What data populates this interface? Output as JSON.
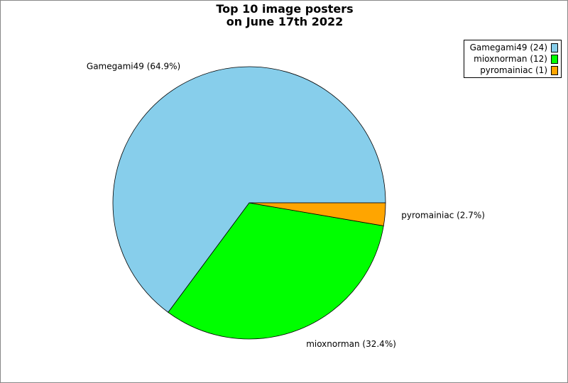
{
  "chart_data": {
    "type": "pie",
    "title_lines": [
      "Top 10 image posters",
      "on June 17th 2022"
    ],
    "slices": [
      {
        "name": "Gamegami49",
        "value": 24,
        "label": "Gamegami49 (64.9%)",
        "legend": "Gamegami49 (24)",
        "color": "#87ceeb"
      },
      {
        "name": "mioxnorman",
        "value": 12,
        "label": "mioxnorman (32.4%)",
        "legend": "mioxnorman (12)",
        "color": "#00ff00"
      },
      {
        "name": "pyromainiac",
        "value": 1,
        "label": "pyromainiac (2.7%)",
        "legend": "pyromainiac (1)",
        "color": "#ffa500"
      }
    ],
    "start_angle_deg": 0,
    "direction": "counterclockwise",
    "legend_position": "top-right"
  }
}
